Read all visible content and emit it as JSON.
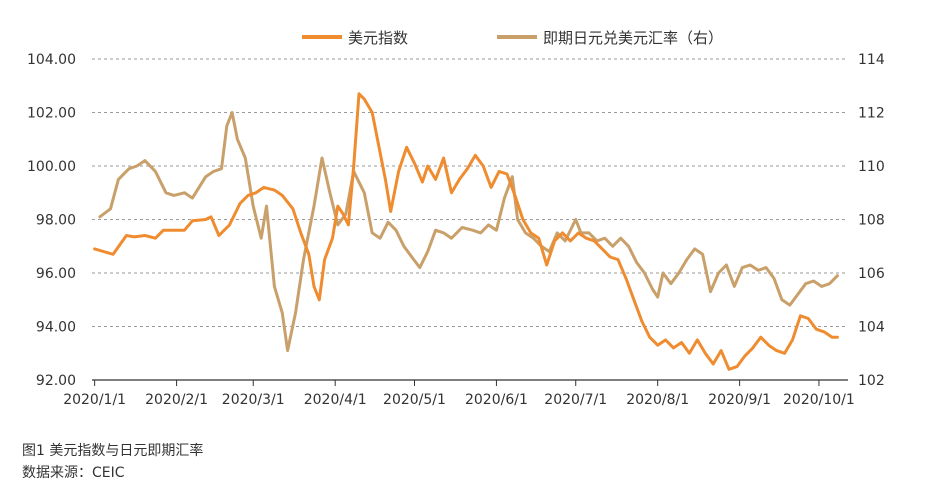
{
  "chart_data": {
    "type": "line",
    "x_ticks": [
      "2020/1/1",
      "2020/2/1",
      "2020/3/1",
      "2020/4/1",
      "2020/5/1",
      "2020/6/1",
      "2020/7/1",
      "2020/8/1",
      "2020/9/1",
      "2020/10/1"
    ],
    "y_left": {
      "min": 92,
      "max": 104,
      "ticks": [
        "92.00",
        "94.00",
        "96.00",
        "98.00",
        "100.00",
        "102.00",
        "104.00"
      ]
    },
    "y_right": {
      "min": 102,
      "max": 114,
      "ticks": [
        "102",
        "104",
        "106",
        "108",
        "110",
        "112",
        "114"
      ]
    },
    "grid": "horizontal dashed",
    "legend_position": "top",
    "series": [
      {
        "name": "美元指数",
        "axis": "left",
        "color": "#f08c30",
        "points": [
          [
            "2020/1/1",
            96.9
          ],
          [
            "2020/1/8",
            96.7
          ],
          [
            "2020/1/13",
            97.4
          ],
          [
            "2020/1/16",
            97.35
          ],
          [
            "2020/1/20",
            97.4
          ],
          [
            "2020/1/24",
            97.3
          ],
          [
            "2020/1/27",
            97.6
          ],
          [
            "2020/1/31",
            97.6
          ],
          [
            "2020/2/4",
            97.6
          ],
          [
            "2020/2/7",
            97.95
          ],
          [
            "2020/2/12",
            98.0
          ],
          [
            "2020/2/14",
            98.1
          ],
          [
            "2020/2/17",
            97.4
          ],
          [
            "2020/2/21",
            97.8
          ],
          [
            "2020/2/25",
            98.6
          ],
          [
            "2020/2/28",
            98.9
          ],
          [
            "2020/3/2",
            99.0
          ],
          [
            "2020/3/5",
            99.2
          ],
          [
            "2020/3/9",
            99.1
          ],
          [
            "2020/3/12",
            98.9
          ],
          [
            "2020/3/16",
            98.4
          ],
          [
            "2020/3/19",
            97.5
          ],
          [
            "2020/3/22",
            96.7
          ],
          [
            "2020/3/24",
            95.5
          ],
          [
            "2020/3/26",
            95.0
          ],
          [
            "2020/3/28",
            96.5
          ],
          [
            "2020/3/31",
            97.3
          ],
          [
            "2020/4/2",
            98.5
          ],
          [
            "2020/4/4",
            98.2
          ],
          [
            "2020/4/6",
            97.8
          ],
          [
            "2020/4/8",
            100.0
          ],
          [
            "2020/4/10",
            102.7
          ],
          [
            "2020/4/12",
            102.5
          ],
          [
            "2020/4/15",
            102.0
          ],
          [
            "2020/4/18",
            100.5
          ],
          [
            "2020/4/20",
            99.5
          ],
          [
            "2020/4/22",
            98.3
          ],
          [
            "2020/4/25",
            99.8
          ],
          [
            "2020/4/28",
            100.7
          ],
          [
            "2020/5/1",
            100.1
          ],
          [
            "2020/5/4",
            99.4
          ],
          [
            "2020/5/6",
            100.0
          ],
          [
            "2020/5/9",
            99.5
          ],
          [
            "2020/5/12",
            100.3
          ],
          [
            "2020/5/15",
            99.0
          ],
          [
            "2020/5/18",
            99.5
          ],
          [
            "2020/5/21",
            99.9
          ],
          [
            "2020/5/24",
            100.4
          ],
          [
            "2020/5/27",
            100.0
          ],
          [
            "2020/5/30",
            99.2
          ],
          [
            "2020/6/2",
            99.8
          ],
          [
            "2020/6/5",
            99.7
          ],
          [
            "2020/6/8",
            98.9
          ],
          [
            "2020/6/11",
            98.0
          ],
          [
            "2020/6/14",
            97.5
          ],
          [
            "2020/6/17",
            97.3
          ],
          [
            "2020/6/20",
            96.3
          ],
          [
            "2020/6/23",
            97.2
          ],
          [
            "2020/6/26",
            97.5
          ],
          [
            "2020/6/29",
            97.2
          ],
          [
            "2020/7/2",
            97.5
          ],
          [
            "2020/7/5",
            97.3
          ],
          [
            "2020/7/8",
            97.2
          ],
          [
            "2020/7/11",
            96.9
          ],
          [
            "2020/7/14",
            96.6
          ],
          [
            "2020/7/17",
            96.5
          ],
          [
            "2020/7/20",
            95.8
          ],
          [
            "2020/7/23",
            95.0
          ],
          [
            "2020/7/26",
            94.2
          ],
          [
            "2020/7/29",
            93.6
          ],
          [
            "2020/8/1",
            93.3
          ],
          [
            "2020/8/4",
            93.5
          ],
          [
            "2020/8/7",
            93.2
          ],
          [
            "2020/8/10",
            93.4
          ],
          [
            "2020/8/13",
            93.0
          ],
          [
            "2020/8/16",
            93.5
          ],
          [
            "2020/8/19",
            93.0
          ],
          [
            "2020/8/22",
            92.6
          ],
          [
            "2020/8/25",
            93.1
          ],
          [
            "2020/8/28",
            92.4
          ],
          [
            "2020/8/31",
            92.5
          ],
          [
            "2020/9/3",
            92.9
          ],
          [
            "2020/9/6",
            93.2
          ],
          [
            "2020/9/9",
            93.6
          ],
          [
            "2020/9/12",
            93.3
          ],
          [
            "2020/9/15",
            93.1
          ],
          [
            "2020/9/18",
            93.0
          ],
          [
            "2020/9/21",
            93.5
          ],
          [
            "2020/9/24",
            94.4
          ],
          [
            "2020/9/27",
            94.3
          ],
          [
            "2020/9/30",
            93.9
          ],
          [
            "2020/10/3",
            93.8
          ],
          [
            "2020/10/6",
            93.6
          ],
          [
            "2020/10/8",
            93.6
          ]
        ]
      },
      {
        "name": "即期日元兑美元汇率（右）",
        "axis": "right",
        "color": "#c9a06a",
        "points": [
          [
            "2020/1/3",
            108.1
          ],
          [
            "2020/1/7",
            108.4
          ],
          [
            "2020/1/10",
            109.5
          ],
          [
            "2020/1/14",
            109.9
          ],
          [
            "2020/1/17",
            110.0
          ],
          [
            "2020/1/20",
            110.2
          ],
          [
            "2020/1/24",
            109.8
          ],
          [
            "2020/1/28",
            109.0
          ],
          [
            "2020/1/31",
            108.9
          ],
          [
            "2020/2/4",
            109.0
          ],
          [
            "2020/2/7",
            108.8
          ],
          [
            "2020/2/12",
            109.6
          ],
          [
            "2020/2/15",
            109.8
          ],
          [
            "2020/2/18",
            109.9
          ],
          [
            "2020/2/20",
            111.5
          ],
          [
            "2020/2/22",
            112.0
          ],
          [
            "2020/2/24",
            111.0
          ],
          [
            "2020/2/27",
            110.3
          ],
          [
            "2020/3/1",
            108.5
          ],
          [
            "2020/3/4",
            107.3
          ],
          [
            "2020/3/6",
            108.5
          ],
          [
            "2020/3/9",
            105.5
          ],
          [
            "2020/3/12",
            104.5
          ],
          [
            "2020/3/14",
            103.1
          ],
          [
            "2020/3/17",
            104.5
          ],
          [
            "2020/3/20",
            106.5
          ],
          [
            "2020/3/24",
            108.5
          ],
          [
            "2020/3/27",
            110.3
          ],
          [
            "2020/3/30",
            109.0
          ],
          [
            "2020/4/2",
            107.8
          ],
          [
            "2020/4/5",
            108.2
          ],
          [
            "2020/4/8",
            109.8
          ],
          [
            "2020/4/12",
            109.0
          ],
          [
            "2020/4/15",
            107.5
          ],
          [
            "2020/4/18",
            107.3
          ],
          [
            "2020/4/21",
            107.9
          ],
          [
            "2020/4/24",
            107.6
          ],
          [
            "2020/4/27",
            107.0
          ],
          [
            "2020/4/30",
            106.6
          ],
          [
            "2020/5/3",
            106.2
          ],
          [
            "2020/5/6",
            106.8
          ],
          [
            "2020/5/9",
            107.6
          ],
          [
            "2020/5/12",
            107.5
          ],
          [
            "2020/5/15",
            107.3
          ],
          [
            "2020/5/19",
            107.7
          ],
          [
            "2020/5/23",
            107.6
          ],
          [
            "2020/5/26",
            107.5
          ],
          [
            "2020/5/29",
            107.8
          ],
          [
            "2020/6/1",
            107.6
          ],
          [
            "2020/6/4",
            108.8
          ],
          [
            "2020/6/7",
            109.6
          ],
          [
            "2020/6/9",
            108.0
          ],
          [
            "2020/6/12",
            107.5
          ],
          [
            "2020/6/15",
            107.3
          ],
          [
            "2020/6/18",
            107.0
          ],
          [
            "2020/6/21",
            106.8
          ],
          [
            "2020/6/24",
            107.5
          ],
          [
            "2020/6/27",
            107.2
          ],
          [
            "2020/7/1",
            108.0
          ],
          [
            "2020/7/3",
            107.5
          ],
          [
            "2020/7/6",
            107.5
          ],
          [
            "2020/7/9",
            107.2
          ],
          [
            "2020/7/12",
            107.3
          ],
          [
            "2020/7/15",
            107.0
          ],
          [
            "2020/7/18",
            107.3
          ],
          [
            "2020/7/21",
            107.0
          ],
          [
            "2020/7/24",
            106.4
          ],
          [
            "2020/7/27",
            106.0
          ],
          [
            "2020/7/30",
            105.4
          ],
          [
            "2020/8/1",
            105.1
          ],
          [
            "2020/8/3",
            106.0
          ],
          [
            "2020/8/6",
            105.6
          ],
          [
            "2020/8/9",
            106.0
          ],
          [
            "2020/8/12",
            106.5
          ],
          [
            "2020/8/15",
            106.9
          ],
          [
            "2020/8/18",
            106.7
          ],
          [
            "2020/8/21",
            105.3
          ],
          [
            "2020/8/24",
            106.0
          ],
          [
            "2020/8/27",
            106.3
          ],
          [
            "2020/8/30",
            105.5
          ],
          [
            "2020/9/2",
            106.2
          ],
          [
            "2020/9/5",
            106.3
          ],
          [
            "2020/9/8",
            106.1
          ],
          [
            "2020/9/11",
            106.2
          ],
          [
            "2020/9/14",
            105.8
          ],
          [
            "2020/9/17",
            105.0
          ],
          [
            "2020/9/20",
            104.8
          ],
          [
            "2020/9/23",
            105.2
          ],
          [
            "2020/9/26",
            105.6
          ],
          [
            "2020/9/29",
            105.7
          ],
          [
            "2020/10/2",
            105.5
          ],
          [
            "2020/10/5",
            105.6
          ],
          [
            "2020/10/8",
            105.9
          ]
        ]
      }
    ]
  },
  "caption": {
    "title": "图1 美元指数与日元即期汇率",
    "source": "数据来源：CEIC"
  }
}
